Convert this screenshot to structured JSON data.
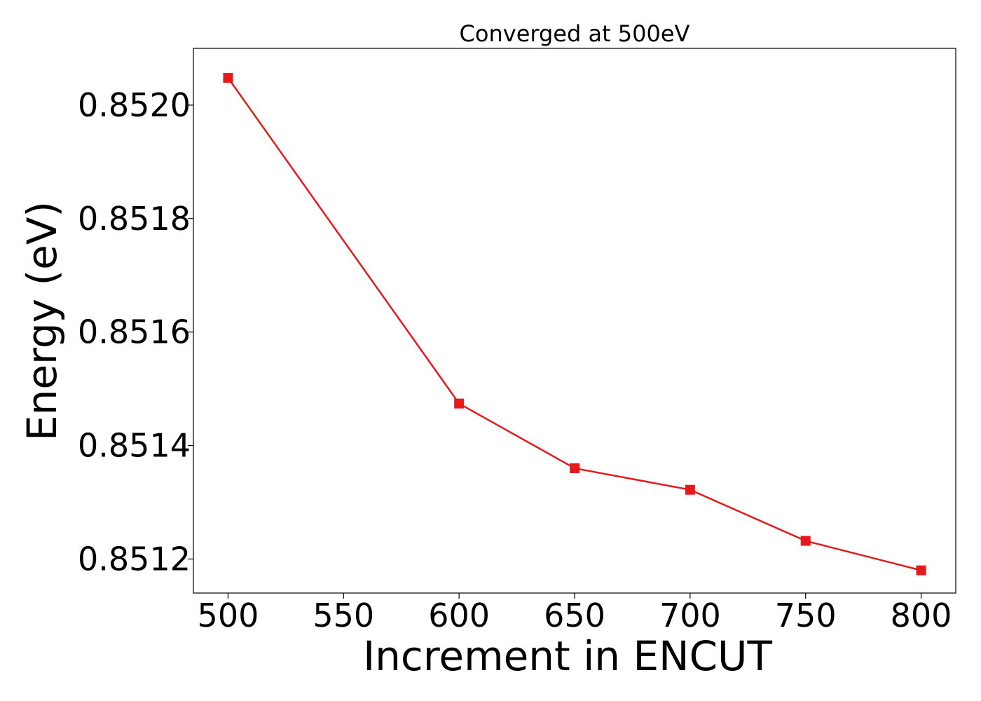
{
  "chart_data": {
    "type": "line",
    "title": "Converged at 500eV",
    "xlabel": "Increment in ENCUT",
    "ylabel": "Energy (eV)",
    "xlim": [
      485,
      815
    ],
    "ylim": [
      0.85114,
      0.8521
    ],
    "xticks": [
      "500",
      "550",
      "600",
      "650",
      "700",
      "750",
      "800"
    ],
    "yticks": [
      "0.8512",
      "0.8514",
      "0.8516",
      "0.8518",
      "0.8520"
    ],
    "grid": false,
    "series": [
      {
        "color": "#e41a1c",
        "marker": "square",
        "x": [
          500,
          600,
          650,
          700,
          750,
          800
        ],
        "y": [
          0.852048,
          0.851474,
          0.85136,
          0.851322,
          0.851232,
          0.85118
        ]
      }
    ]
  }
}
